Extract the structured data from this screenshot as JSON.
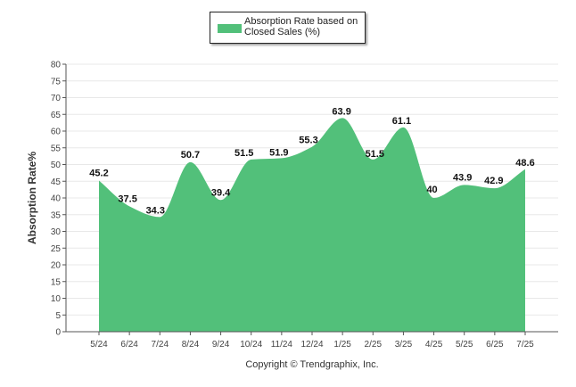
{
  "legend": {
    "label": "Absorption Rate based on Closed Sales (%)"
  },
  "copyright": "Copyright © Trendgraphix, Inc.",
  "colors": {
    "area": "#52c07a",
    "grid": "#e8e8e8",
    "axis": "#555555"
  },
  "chart_data": {
    "type": "area",
    "ylabel": "Absorption Rate%",
    "xlabel": "",
    "ylim": [
      0,
      80
    ],
    "yticks": [
      0,
      5,
      10,
      15,
      20,
      25,
      30,
      35,
      40,
      45,
      50,
      55,
      60,
      65,
      70,
      75,
      80
    ],
    "categories": [
      "5/24",
      "6/24",
      "7/24",
      "8/24",
      "9/24",
      "10/24",
      "11/24",
      "12/24",
      "1/25",
      "2/25",
      "3/25",
      "4/25",
      "5/25",
      "6/25",
      "7/25"
    ],
    "series": [
      {
        "name": "Absorption Rate based on Closed Sales (%)",
        "values": [
          45.2,
          37.5,
          34.3,
          50.7,
          39.4,
          51.5,
          51.9,
          55.3,
          63.9,
          51.5,
          61.1,
          40,
          43.9,
          42.9,
          48.6
        ]
      }
    ],
    "value_labels": [
      "45.2",
      "37.5",
      "34.3",
      "50.7",
      "39.4",
      "51.5",
      "51.9",
      "55.3",
      "63.9",
      "51.5",
      "61.1",
      "40",
      "43.9",
      "42.9",
      "48.6"
    ],
    "grid": true,
    "legend_position": "top-center"
  }
}
